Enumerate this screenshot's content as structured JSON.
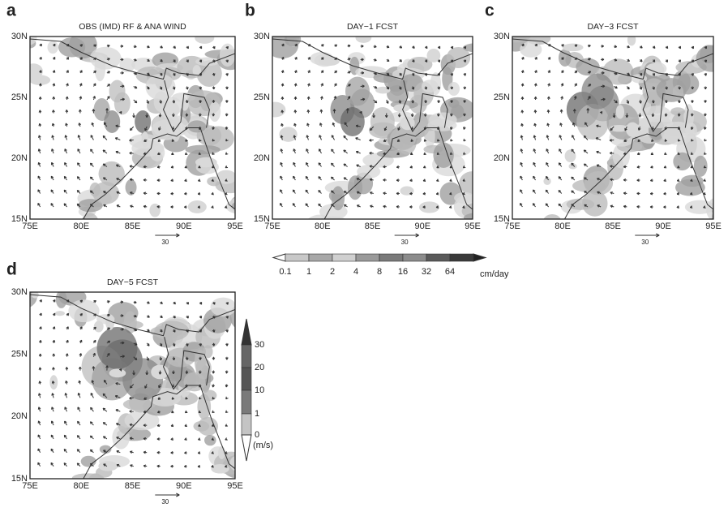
{
  "panels": [
    {
      "letter": "a",
      "title": "OBS (IMD) RF & ANA WIND",
      "ref_vector": "30"
    },
    {
      "letter": "b",
      "title": "DAY−1 FCST",
      "ref_vector": "30"
    },
    {
      "letter": "c",
      "title": "DAY−3 FCST",
      "ref_vector": "30"
    },
    {
      "letter": "d",
      "title": "DAY−5 FCST",
      "ref_vector": "30"
    }
  ],
  "lat_labels": [
    "30N",
    "25N",
    "20N",
    "15N"
  ],
  "lon_labels": [
    "75E",
    "80E",
    "85E",
    "90E",
    "95E"
  ],
  "rain_colorbar": {
    "labels": [
      "0.1",
      "1",
      "2",
      "4",
      "8",
      "16",
      "32",
      "64"
    ],
    "unit": "cm/day"
  },
  "wind_colorbar": {
    "labels": [
      "30",
      "20",
      "10",
      "1",
      "0"
    ],
    "unit": "(m/s)"
  }
}
